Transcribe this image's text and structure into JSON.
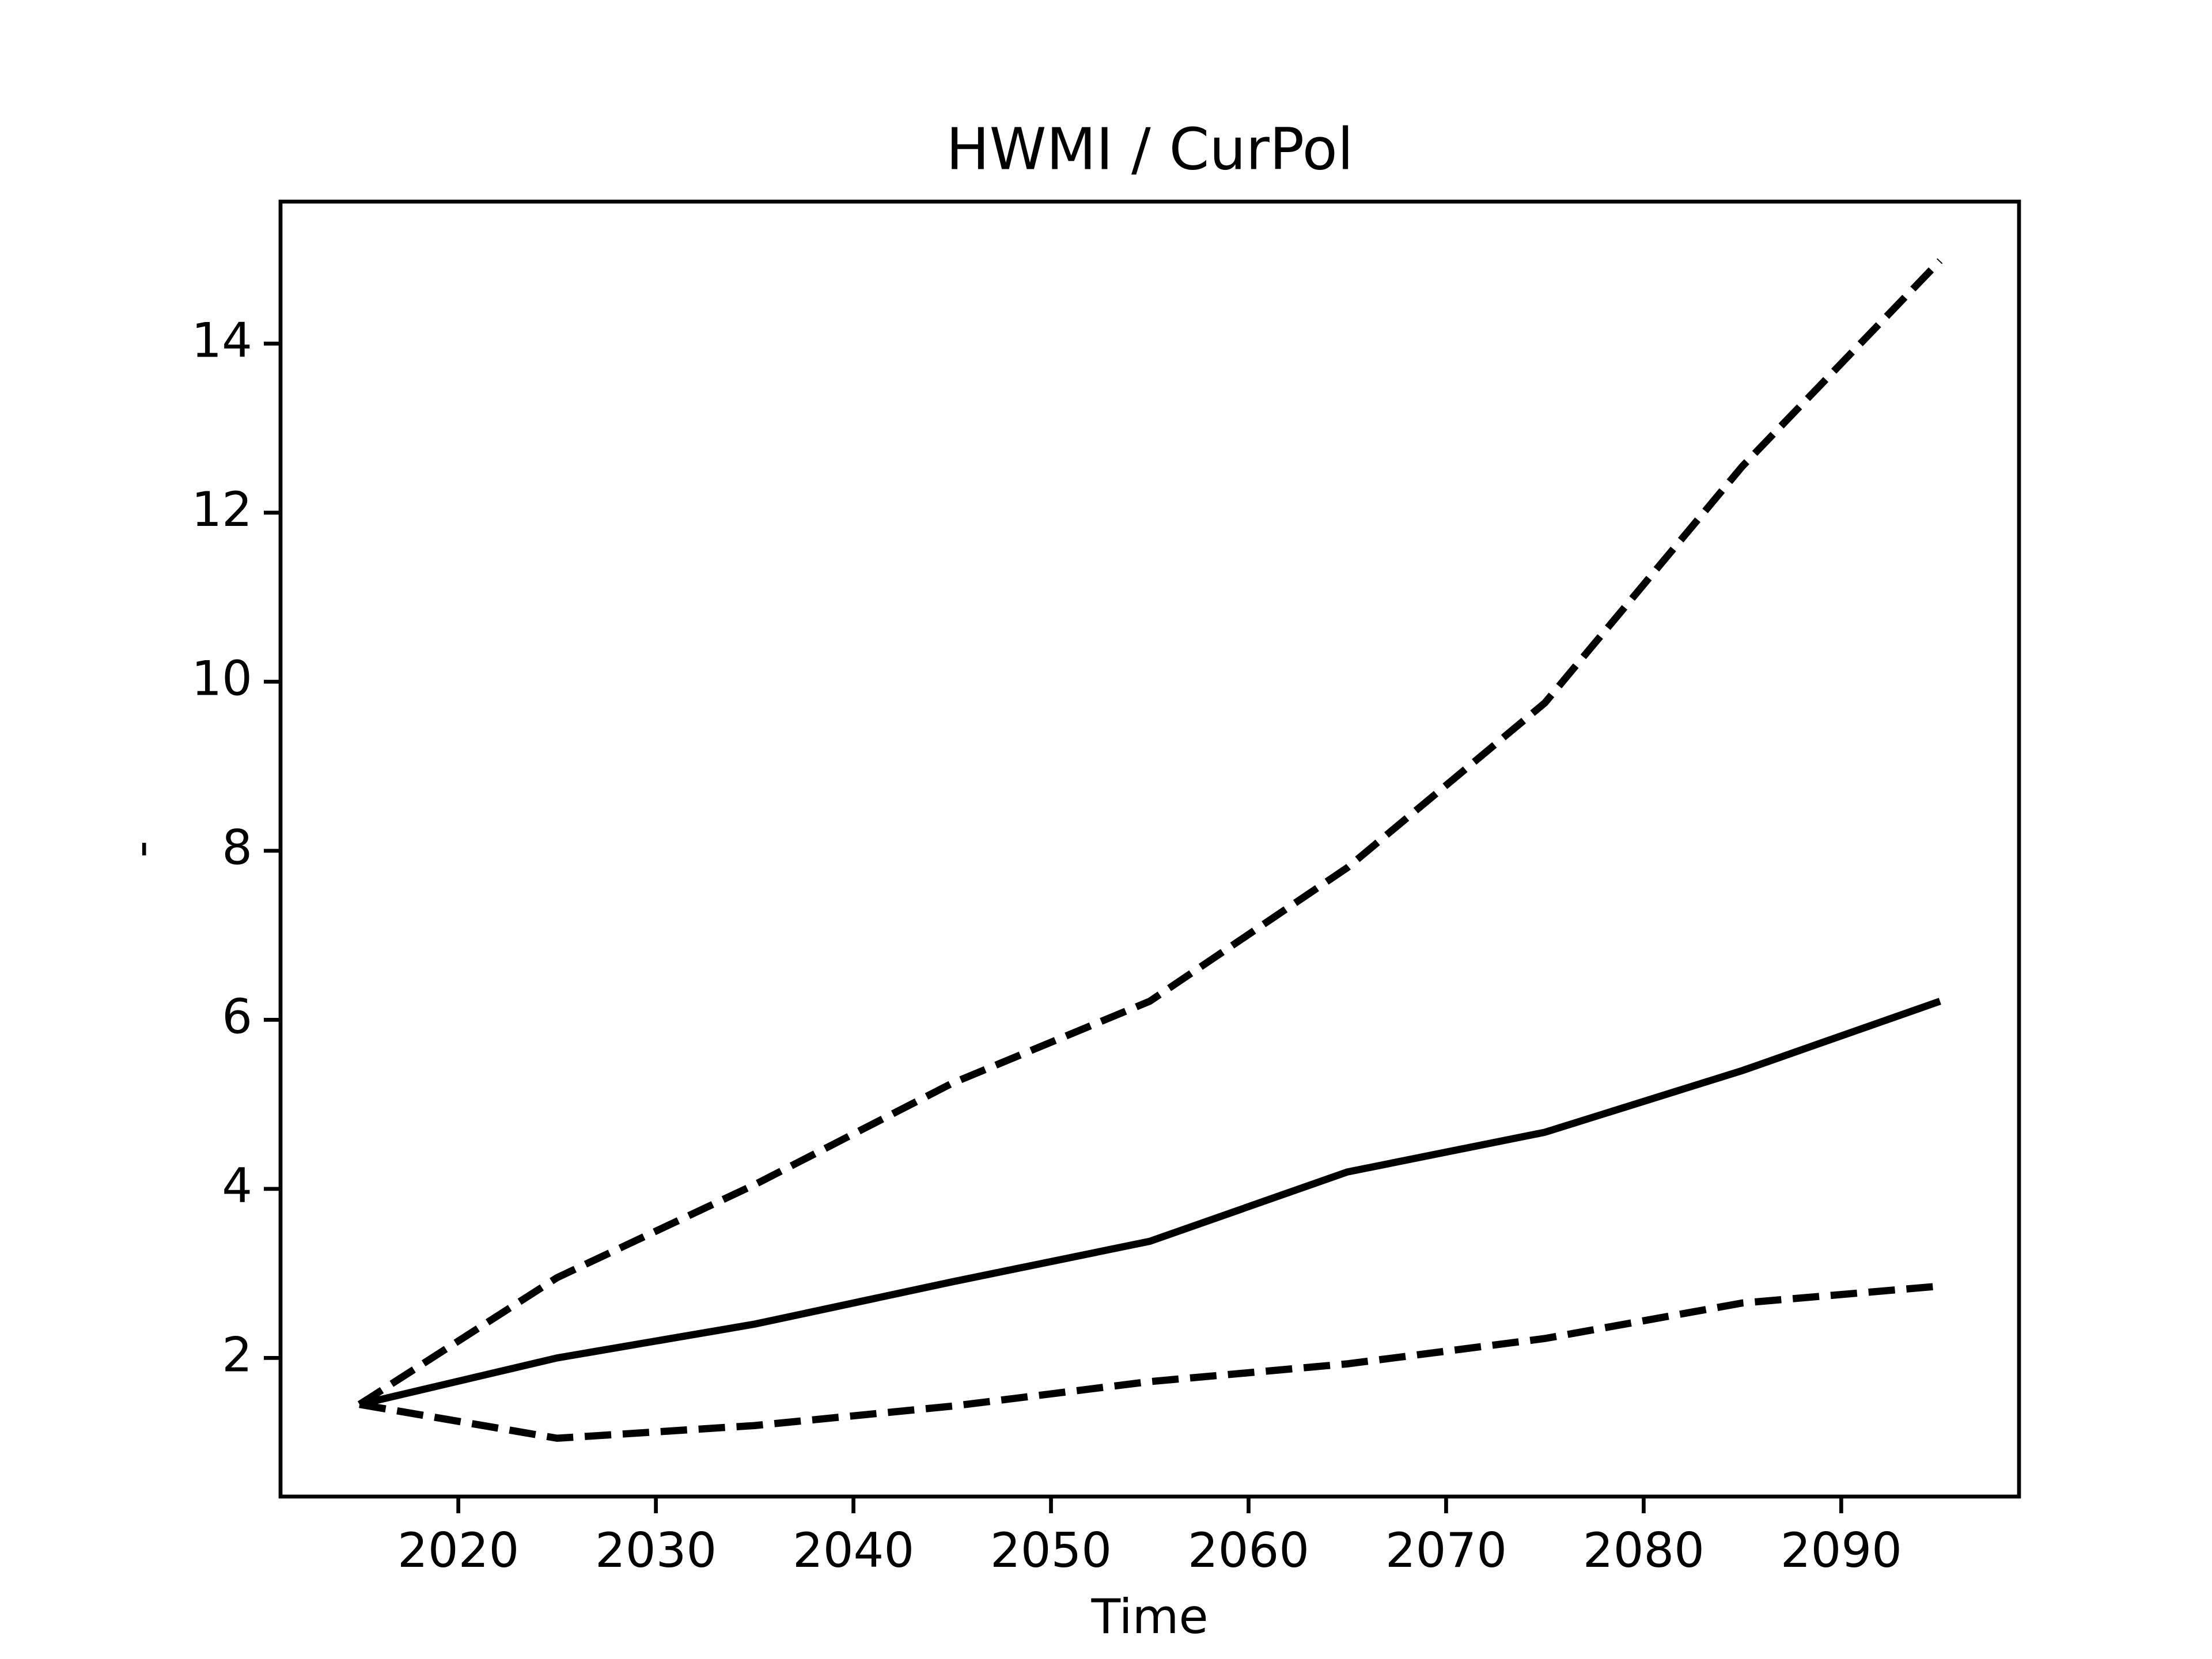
{
  "chart_data": {
    "type": "line",
    "title": "HWMI / CurPol",
    "x_label": "Time",
    "y_label": "-",
    "x": [
      2015,
      2025,
      2035,
      2045,
      2055,
      2065,
      2075,
      2085,
      2095
    ],
    "series": [
      {
        "color": "#000000",
        "dash": "solid",
        "values": [
          1.45,
          2.0,
          2.4,
          2.9,
          3.38,
          4.2,
          4.67,
          5.4,
          6.22
        ]
      },
      {
        "color": "#000000",
        "dash": "dashed",
        "values": [
          1.45,
          2.95,
          4.05,
          5.25,
          6.22,
          7.8,
          9.75,
          12.55,
          14.98
        ]
      },
      {
        "color": "#000000",
        "dash": "dashed",
        "values": [
          1.45,
          1.05,
          1.2,
          1.43,
          1.72,
          1.93,
          2.23,
          2.65,
          2.85
        ]
      }
    ],
    "xlim": [
      2011,
      2099
    ],
    "xticks": [
      2020,
      2030,
      2040,
      2050,
      2060,
      2070,
      2080,
      2090
    ],
    "ylim": [
      0.36,
      15.68
    ],
    "yticks": [
      2,
      4,
      6,
      8,
      10,
      12,
      14
    ],
    "grid": false
  }
}
